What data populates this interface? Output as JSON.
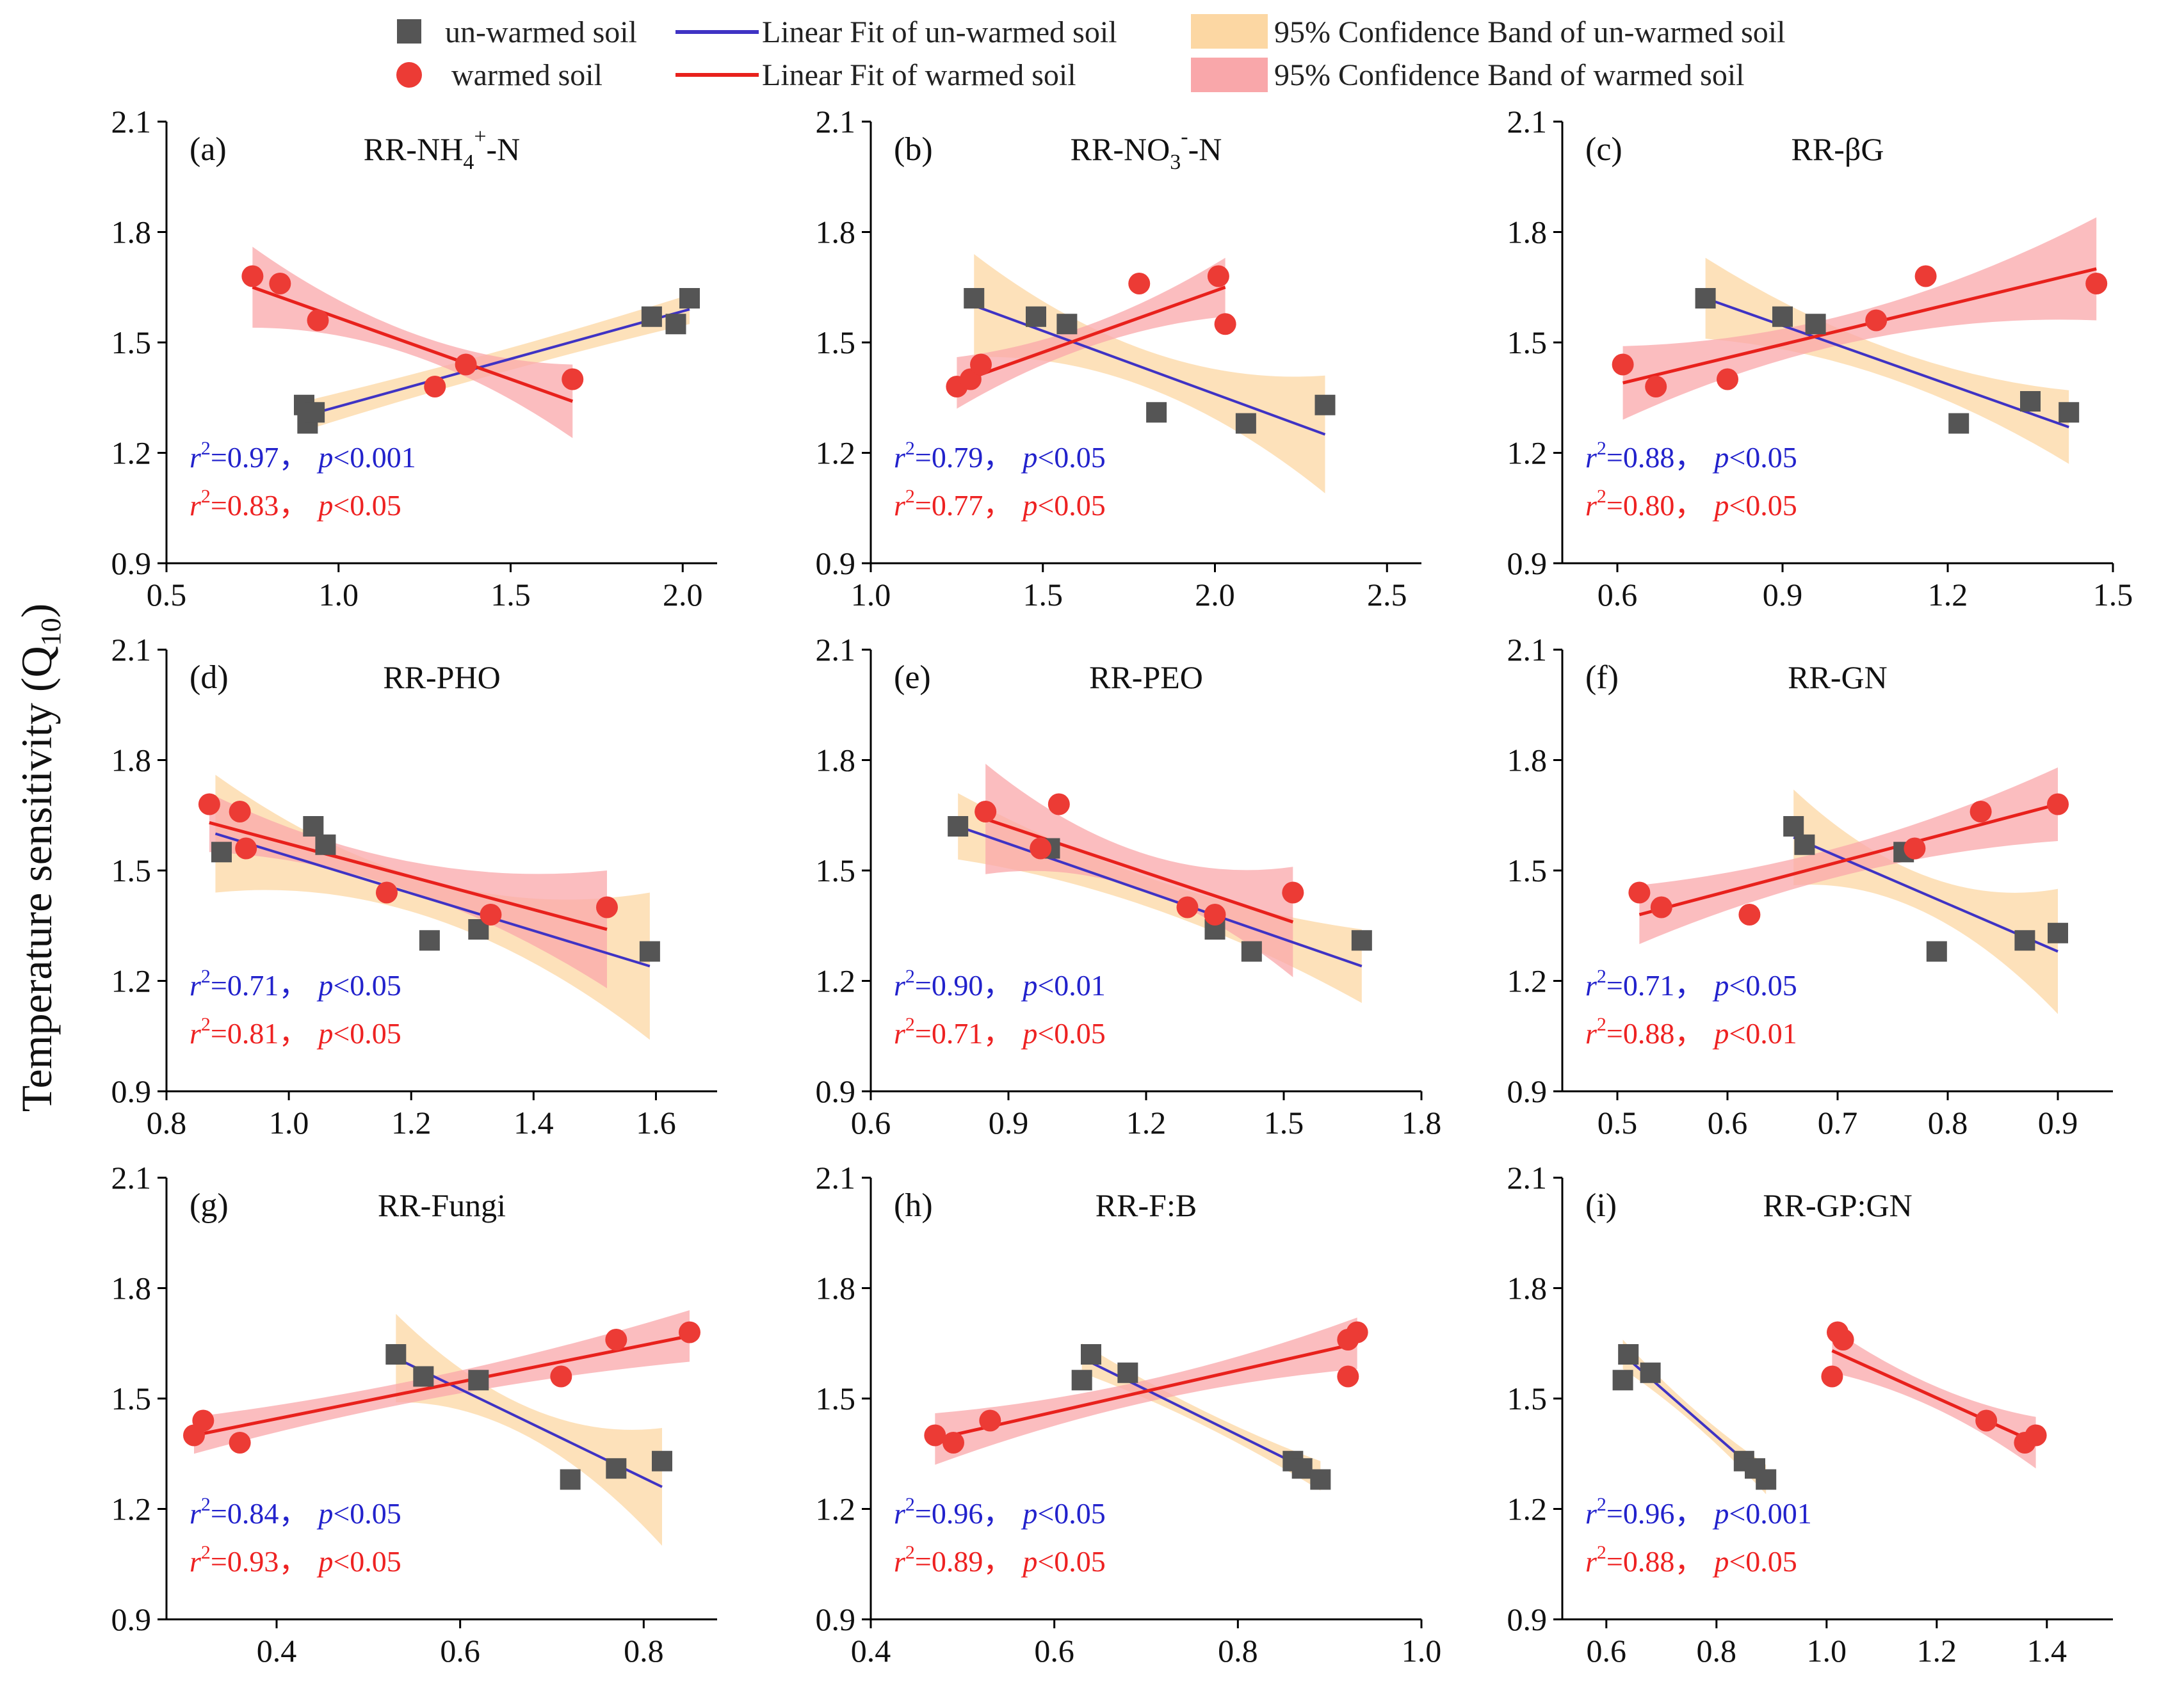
{
  "figure": {
    "ylabel_main": "Temperature sensitivity (Q",
    "ylabel_sub": "10",
    "ylabel_close": ")"
  },
  "legend": {
    "unwarmed_points": "un-warmed soil",
    "warmed_points": "warmed soil",
    "unwarmed_fit": "Linear Fit of un-warmed soil",
    "warmed_fit": "Linear Fit of warmed soil",
    "unwarmed_band": "95% Confidence Band of un-warmed soil",
    "warmed_band": "95% Confidence Band of warmed soil"
  },
  "colors": {
    "unwarmed_point": "#555555",
    "warmed_point": "#ec3b35",
    "unwarmed_line": "#3f33c4",
    "warmed_line": "#e8211c",
    "unwarmed_band": "#fcd7a3",
    "warmed_band": "#f9a7aa",
    "stat_blue": "#2222cc",
    "stat_red": "#ee2222"
  },
  "chart_data": [
    {
      "type": "scatter",
      "label": "(a)",
      "title": "RR-NH4+-N",
      "title_parts": {
        "pre": "RR-NH",
        "sub": "4",
        "sup": "+",
        "post": "-N"
      },
      "xlim": [
        0.5,
        2.1
      ],
      "xticks": [
        0.5,
        1.0,
        1.5,
        2.0
      ],
      "xtick_labels": [
        "0.5",
        "1.0",
        "1.5",
        "2.0"
      ],
      "ylim": [
        0.9,
        2.1
      ],
      "yticks": [
        0.9,
        1.2,
        1.5,
        1.8,
        2.1
      ],
      "ytick_labels": [
        "0.9",
        "1.2",
        "1.5",
        "1.8",
        "2.1"
      ],
      "series": [
        {
          "name": "un-warmed soil",
          "x": [
            0.9,
            0.91,
            0.93,
            1.91,
            1.98,
            2.02
          ],
          "y": [
            1.33,
            1.28,
            1.31,
            1.57,
            1.55,
            1.62
          ],
          "fit": [
            [
              0.9,
              1.3
            ],
            [
              2.02,
              1.59
            ]
          ],
          "band_halfwidth": [
            0.04,
            0.03,
            0.04
          ]
        },
        {
          "name": "warmed soil",
          "x": [
            0.75,
            0.83,
            0.94,
            1.28,
            1.37,
            1.68
          ],
          "y": [
            1.68,
            1.66,
            1.56,
            1.38,
            1.44,
            1.4
          ],
          "fit": [
            [
              0.75,
              1.65
            ],
            [
              1.68,
              1.34
            ]
          ],
          "band_halfwidth": [
            0.11,
            0.03,
            0.1
          ]
        }
      ],
      "stats": [
        {
          "r2": "=0.97",
          "p": "<0.001"
        },
        {
          "r2": "=0.83",
          "p": "<0.05"
        }
      ]
    },
    {
      "type": "scatter",
      "label": "(b)",
      "title": "RR-NO3--N",
      "title_parts": {
        "pre": "RR-NO",
        "sub": "3",
        "sup": "-",
        "post": "-N"
      },
      "xlim": [
        1.0,
        2.6
      ],
      "xticks": [
        1.0,
        1.5,
        2.0,
        2.5
      ],
      "xtick_labels": [
        "1.0",
        "1.5",
        "2.0",
        "2.5"
      ],
      "ylim": [
        0.9,
        2.1
      ],
      "yticks": [
        0.9,
        1.2,
        1.5,
        1.8,
        2.1
      ],
      "ytick_labels": [
        "0.9",
        "1.2",
        "1.5",
        "1.8",
        "2.1"
      ],
      "series": [
        {
          "name": "un-warmed soil",
          "x": [
            1.3,
            1.48,
            1.57,
            1.83,
            2.09,
            2.32
          ],
          "y": [
            1.62,
            1.57,
            1.55,
            1.31,
            1.28,
            1.33
          ],
          "fit": [
            [
              1.3,
              1.6
            ],
            [
              2.32,
              1.25
            ]
          ],
          "band_halfwidth": [
            0.14,
            0.05,
            0.16
          ]
        },
        {
          "name": "warmed soil",
          "x": [
            1.25,
            1.29,
            1.32,
            1.78,
            2.01,
            2.03
          ],
          "y": [
            1.38,
            1.4,
            1.44,
            1.66,
            1.68,
            1.55
          ],
          "fit": [
            [
              1.25,
              1.39
            ],
            [
              2.03,
              1.65
            ]
          ],
          "band_halfwidth": [
            0.07,
            0.03,
            0.08
          ]
        }
      ],
      "stats": [
        {
          "r2": "=0.79",
          "p": "<0.05"
        },
        {
          "r2": "=0.77",
          "p": "<0.05"
        }
      ]
    },
    {
      "type": "scatter",
      "label": "(c)",
      "title": "RR-βG",
      "xlim": [
        0.5,
        1.5
      ],
      "xticks": [
        0.6,
        0.9,
        1.2,
        1.5
      ],
      "xtick_labels": [
        "0.6",
        "0.9",
        "1.2",
        "1.5"
      ],
      "ylim": [
        0.9,
        2.1
      ],
      "yticks": [
        0.9,
        1.2,
        1.5,
        1.8,
        2.1
      ],
      "ytick_labels": [
        "0.9",
        "1.2",
        "1.5",
        "1.8",
        "2.1"
      ],
      "series": [
        {
          "name": "un-warmed soil",
          "x": [
            0.76,
            0.9,
            0.96,
            1.22,
            1.35,
            1.42
          ],
          "y": [
            1.62,
            1.57,
            1.55,
            1.28,
            1.34,
            1.31
          ],
          "fit": [
            [
              0.76,
              1.62
            ],
            [
              1.42,
              1.27
            ]
          ],
          "band_halfwidth": [
            0.11,
            0.04,
            0.1
          ]
        },
        {
          "name": "warmed soil",
          "x": [
            0.61,
            0.67,
            0.8,
            1.07,
            1.16,
            1.47
          ],
          "y": [
            1.44,
            1.38,
            1.4,
            1.56,
            1.68,
            1.66
          ],
          "fit": [
            [
              0.61,
              1.39
            ],
            [
              1.47,
              1.7
            ]
          ],
          "band_halfwidth": [
            0.1,
            0.04,
            0.14
          ]
        }
      ],
      "stats": [
        {
          "r2": "=0.88",
          "p": "<0.05"
        },
        {
          "r2": "=0.80",
          "p": "<0.05"
        }
      ]
    },
    {
      "type": "scatter",
      "label": "(d)",
      "title": "RR-PHO",
      "xlim": [
        0.8,
        1.7
      ],
      "xticks": [
        0.8,
        1.0,
        1.2,
        1.4,
        1.6
      ],
      "xtick_labels": [
        "0.8",
        "1.0",
        "1.2",
        "1.4",
        "1.6"
      ],
      "ylim": [
        0.9,
        2.1
      ],
      "yticks": [
        0.9,
        1.2,
        1.5,
        1.8,
        2.1
      ],
      "ytick_labels": [
        "0.9",
        "1.2",
        "1.5",
        "1.8",
        "2.1"
      ],
      "series": [
        {
          "name": "un-warmed soil",
          "x": [
            0.89,
            1.04,
            1.06,
            1.23,
            1.31,
            1.59
          ],
          "y": [
            1.55,
            1.62,
            1.57,
            1.31,
            1.34,
            1.28
          ],
          "fit": [
            [
              0.88,
              1.6
            ],
            [
              1.59,
              1.24
            ]
          ],
          "band_halfwidth": [
            0.16,
            0.05,
            0.2
          ]
        },
        {
          "name": "warmed soil",
          "x": [
            0.87,
            0.92,
            0.93,
            1.16,
            1.33,
            1.52
          ],
          "y": [
            1.68,
            1.66,
            1.56,
            1.44,
            1.38,
            1.4
          ],
          "fit": [
            [
              0.87,
              1.63
            ],
            [
              1.52,
              1.34
            ]
          ],
          "band_halfwidth": [
            0.08,
            0.04,
            0.16
          ]
        }
      ],
      "stats": [
        {
          "r2": "=0.71",
          "p": "<0.05"
        },
        {
          "r2": "=0.81",
          "p": "<0.05"
        }
      ]
    },
    {
      "type": "scatter",
      "label": "(e)",
      "title": "RR-PEO",
      "xlim": [
        0.6,
        1.8
      ],
      "xticks": [
        0.6,
        0.9,
        1.2,
        1.5,
        1.8
      ],
      "xtick_labels": [
        "0.6",
        "0.9",
        "1.2",
        "1.5",
        "1.8"
      ],
      "ylim": [
        0.9,
        2.1
      ],
      "yticks": [
        0.9,
        1.2,
        1.5,
        1.8,
        2.1
      ],
      "ytick_labels": [
        "0.9",
        "1.2",
        "1.5",
        "1.8",
        "2.1"
      ],
      "series": [
        {
          "name": "un-warmed soil",
          "x": [
            0.79,
            0.99,
            1.35,
            1.43,
            1.67
          ],
          "y": [
            1.62,
            1.56,
            1.34,
            1.28,
            1.31
          ],
          "fit": [
            [
              0.79,
              1.62
            ],
            [
              1.67,
              1.24
            ]
          ],
          "band_halfwidth": [
            0.09,
            0.04,
            0.1
          ]
        },
        {
          "name": "warmed soil",
          "x": [
            0.85,
            0.97,
            1.01,
            1.29,
            1.35,
            1.52
          ],
          "y": [
            1.66,
            1.56,
            1.68,
            1.4,
            1.38,
            1.44
          ],
          "fit": [
            [
              0.85,
              1.64
            ],
            [
              1.52,
              1.36
            ]
          ],
          "band_halfwidth": [
            0.15,
            0.05,
            0.15
          ]
        }
      ],
      "stats": [
        {
          "r2": "=0.90",
          "p": "<0.01"
        },
        {
          "r2": "=0.71",
          "p": "<0.05"
        }
      ]
    },
    {
      "type": "scatter",
      "label": "(f)",
      "title": "RR-GN",
      "xlim": [
        0.45,
        0.95
      ],
      "xticks": [
        0.5,
        0.6,
        0.7,
        0.8,
        0.9
      ],
      "xtick_labels": [
        "0.5",
        "0.6",
        "0.7",
        "0.8",
        "0.9"
      ],
      "ylim": [
        0.9,
        2.1
      ],
      "yticks": [
        0.9,
        1.2,
        1.5,
        1.8,
        2.1
      ],
      "ytick_labels": [
        "0.9",
        "1.2",
        "1.5",
        "1.8",
        "2.1"
      ],
      "series": [
        {
          "name": "un-warmed soil",
          "x": [
            0.66,
            0.67,
            0.76,
            0.79,
            0.87,
            0.9
          ],
          "y": [
            1.62,
            1.57,
            1.55,
            1.28,
            1.31,
            1.33
          ],
          "fit": [
            [
              0.66,
              1.59
            ],
            [
              0.9,
              1.28
            ]
          ],
          "band_halfwidth": [
            0.13,
            0.05,
            0.17
          ]
        },
        {
          "name": "warmed soil",
          "x": [
            0.52,
            0.54,
            0.62,
            0.77,
            0.83,
            0.9
          ],
          "y": [
            1.44,
            1.4,
            1.38,
            1.56,
            1.66,
            1.68
          ],
          "fit": [
            [
              0.52,
              1.38
            ],
            [
              0.9,
              1.68
            ]
          ],
          "band_halfwidth": [
            0.08,
            0.04,
            0.1
          ]
        }
      ],
      "stats": [
        {
          "r2": "=0.71",
          "p": "<0.05"
        },
        {
          "r2": "=0.88",
          "p": "<0.01"
        }
      ]
    },
    {
      "type": "scatter",
      "label": "(g)",
      "title": "RR-Fungi",
      "xlim": [
        0.28,
        0.88
      ],
      "xticks": [
        0.4,
        0.6,
        0.8
      ],
      "xtick_labels": [
        "0.4",
        "0.6",
        "0.8"
      ],
      "ylim": [
        0.9,
        2.1
      ],
      "yticks": [
        0.9,
        1.2,
        1.5,
        1.8,
        2.1
      ],
      "ytick_labels": [
        "0.9",
        "1.2",
        "1.5",
        "1.8",
        "2.1"
      ],
      "series": [
        {
          "name": "un-warmed soil",
          "x": [
            0.53,
            0.56,
            0.62,
            0.72,
            0.77,
            0.82
          ],
          "y": [
            1.62,
            1.56,
            1.55,
            1.28,
            1.31,
            1.33
          ],
          "fit": [
            [
              0.53,
              1.61
            ],
            [
              0.82,
              1.26
            ]
          ],
          "band_halfwidth": [
            0.12,
            0.04,
            0.16
          ]
        },
        {
          "name": "warmed soil",
          "x": [
            0.31,
            0.32,
            0.36,
            0.71,
            0.77,
            0.85
          ],
          "y": [
            1.4,
            1.44,
            1.38,
            1.56,
            1.66,
            1.68
          ],
          "fit": [
            [
              0.31,
              1.4
            ],
            [
              0.85,
              1.67
            ]
          ],
          "band_halfwidth": [
            0.05,
            0.03,
            0.07
          ]
        }
      ],
      "stats": [
        {
          "r2": "=0.84",
          "p": "<0.05"
        },
        {
          "r2": "=0.93",
          "p": "<0.05"
        }
      ]
    },
    {
      "type": "scatter",
      "label": "(h)",
      "title": "RR-F:B",
      "xlim": [
        0.4,
        1.0
      ],
      "xticks": [
        0.4,
        0.6,
        0.8,
        1.0
      ],
      "xtick_labels": [
        "0.4",
        "0.6",
        "0.8",
        "1.0"
      ],
      "ylim": [
        0.9,
        2.1
      ],
      "yticks": [
        0.9,
        1.2,
        1.5,
        1.8,
        2.1
      ],
      "ytick_labels": [
        "0.9",
        "1.2",
        "1.5",
        "1.8",
        "2.1"
      ],
      "series": [
        {
          "name": "un-warmed soil",
          "x": [
            0.63,
            0.64,
            0.68,
            0.86,
            0.87,
            0.89
          ],
          "y": [
            1.55,
            1.62,
            1.57,
            1.33,
            1.31,
            1.28
          ],
          "fit": [
            [
              0.63,
              1.61
            ],
            [
              0.89,
              1.29
            ]
          ],
          "band_halfwidth": [
            0.04,
            0.02,
            0.04
          ]
        },
        {
          "name": "warmed soil",
          "x": [
            0.47,
            0.49,
            0.53,
            0.92,
            0.92,
            0.93
          ],
          "y": [
            1.4,
            1.38,
            1.44,
            1.66,
            1.56,
            1.68
          ],
          "fit": [
            [
              0.47,
              1.39
            ],
            [
              0.93,
              1.65
            ]
          ],
          "band_halfwidth": [
            0.07,
            0.03,
            0.07
          ]
        }
      ],
      "stats": [
        {
          "r2": "=0.96",
          "p": "<0.05"
        },
        {
          "r2": "=0.89",
          "p": "<0.05"
        }
      ]
    },
    {
      "type": "scatter",
      "label": "(i)",
      "title": "RR-GP:GN",
      "xlim": [
        0.52,
        1.52
      ],
      "xticks": [
        0.6,
        0.8,
        1.0,
        1.2,
        1.4
      ],
      "xtick_labels": [
        "0.6",
        "0.8",
        "1.0",
        "1.2",
        "1.4"
      ],
      "ylim": [
        0.9,
        2.1
      ],
      "yticks": [
        0.9,
        1.2,
        1.5,
        1.8,
        2.1
      ],
      "ytick_labels": [
        "0.9",
        "1.2",
        "1.5",
        "1.8",
        "2.1"
      ],
      "series": [
        {
          "name": "un-warmed soil",
          "x": [
            0.63,
            0.64,
            0.68,
            0.85,
            0.87,
            0.89
          ],
          "y": [
            1.55,
            1.62,
            1.57,
            1.33,
            1.31,
            1.28
          ],
          "fit": [
            [
              0.63,
              1.62
            ],
            [
              0.89,
              1.28
            ]
          ],
          "band_halfwidth": [
            0.04,
            0.02,
            0.04
          ]
        },
        {
          "name": "warmed soil",
          "x": [
            1.01,
            1.02,
            1.03,
            1.29,
            1.36,
            1.38
          ],
          "y": [
            1.56,
            1.68,
            1.66,
            1.44,
            1.38,
            1.4
          ],
          "fit": [
            [
              1.01,
              1.63
            ],
            [
              1.38,
              1.38
            ]
          ],
          "band_halfwidth": [
            0.06,
            0.03,
            0.07
          ]
        }
      ],
      "stats": [
        {
          "r2": "=0.96",
          "p": "<0.001"
        },
        {
          "r2": "=0.88",
          "p": "<0.05"
        }
      ]
    }
  ]
}
